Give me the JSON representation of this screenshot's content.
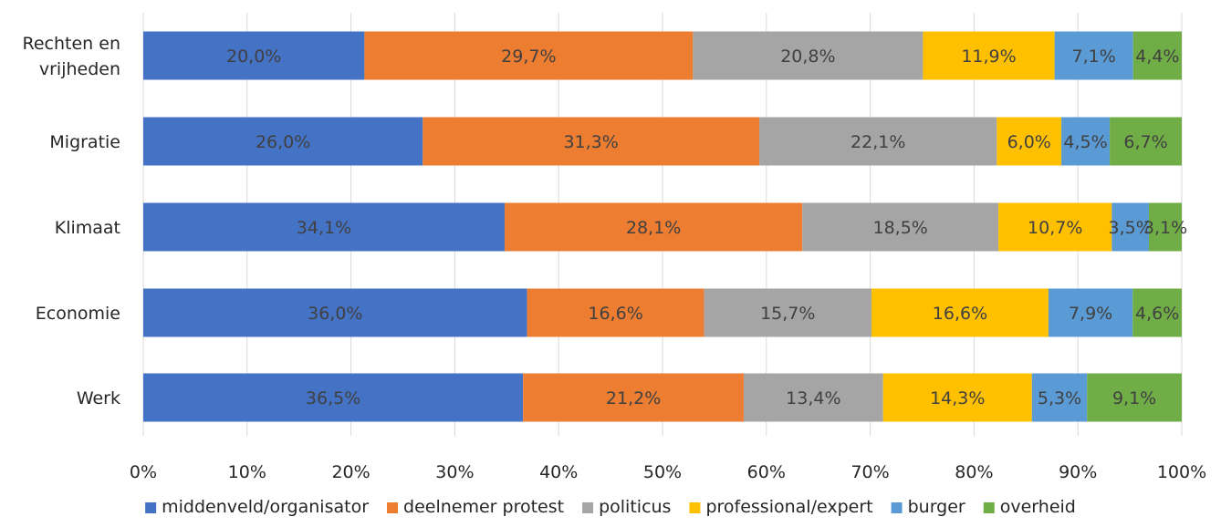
{
  "chart_data": {
    "type": "bar",
    "orientation": "horizontal",
    "stacked": "percent",
    "categories": [
      "Rechten en vrijheden",
      "Migratie",
      "Klimaat",
      "Economie",
      "Werk"
    ],
    "category_label_lines": [
      [
        "Rechten en",
        "vrijheden"
      ],
      [
        "Migratie"
      ],
      [
        "Klimaat"
      ],
      [
        "Economie"
      ],
      [
        "Werk"
      ]
    ],
    "series": [
      {
        "name": "middenveld/organisator",
        "color": "#4472C4",
        "values": [
          20.0,
          26.0,
          34.1,
          36.0,
          36.5
        ],
        "labels": [
          "20,0%",
          "26,0%",
          "34,1%",
          "36,0%",
          "36,5%"
        ]
      },
      {
        "name": "deelnemer protest",
        "color": "#ED7D31",
        "values": [
          29.7,
          31.3,
          28.1,
          16.6,
          21.2
        ],
        "labels": [
          "29,7%",
          "31,3%",
          "28,1%",
          "16,6%",
          "21,2%"
        ]
      },
      {
        "name": "politicus",
        "color": "#A5A5A5",
        "values": [
          20.8,
          22.1,
          18.5,
          15.7,
          13.4
        ],
        "labels": [
          "20,8%",
          "22,1%",
          "18,5%",
          "15,7%",
          "13,4%"
        ]
      },
      {
        "name": "professional/expert",
        "color": "#FFC000",
        "values": [
          11.9,
          6.0,
          10.7,
          16.6,
          14.3
        ],
        "labels": [
          "11,9%",
          "6,0%",
          "10,7%",
          "16,6%",
          "14,3%"
        ]
      },
      {
        "name": "burger",
        "color": "#5B9BD5",
        "values": [
          7.1,
          4.5,
          3.5,
          7.9,
          5.3
        ],
        "labels": [
          "7,1%",
          "4,5%",
          "3,5%",
          "7,9%",
          "5,3%"
        ]
      },
      {
        "name": "overheid",
        "color": "#70AD47",
        "values": [
          4.4,
          6.7,
          3.1,
          4.6,
          9.1
        ],
        "labels": [
          "4,4%",
          "6,7%",
          "3,1%",
          "4,6%",
          "9,1%"
        ]
      }
    ],
    "x_ticks": [
      "0%",
      "10%",
      "20%",
      "30%",
      "40%",
      "50%",
      "60%",
      "70%",
      "80%",
      "90%",
      "100%"
    ],
    "xlim": [
      0,
      100
    ],
    "grid": true,
    "legend_position": "bottom",
    "label_color": "#404040"
  }
}
